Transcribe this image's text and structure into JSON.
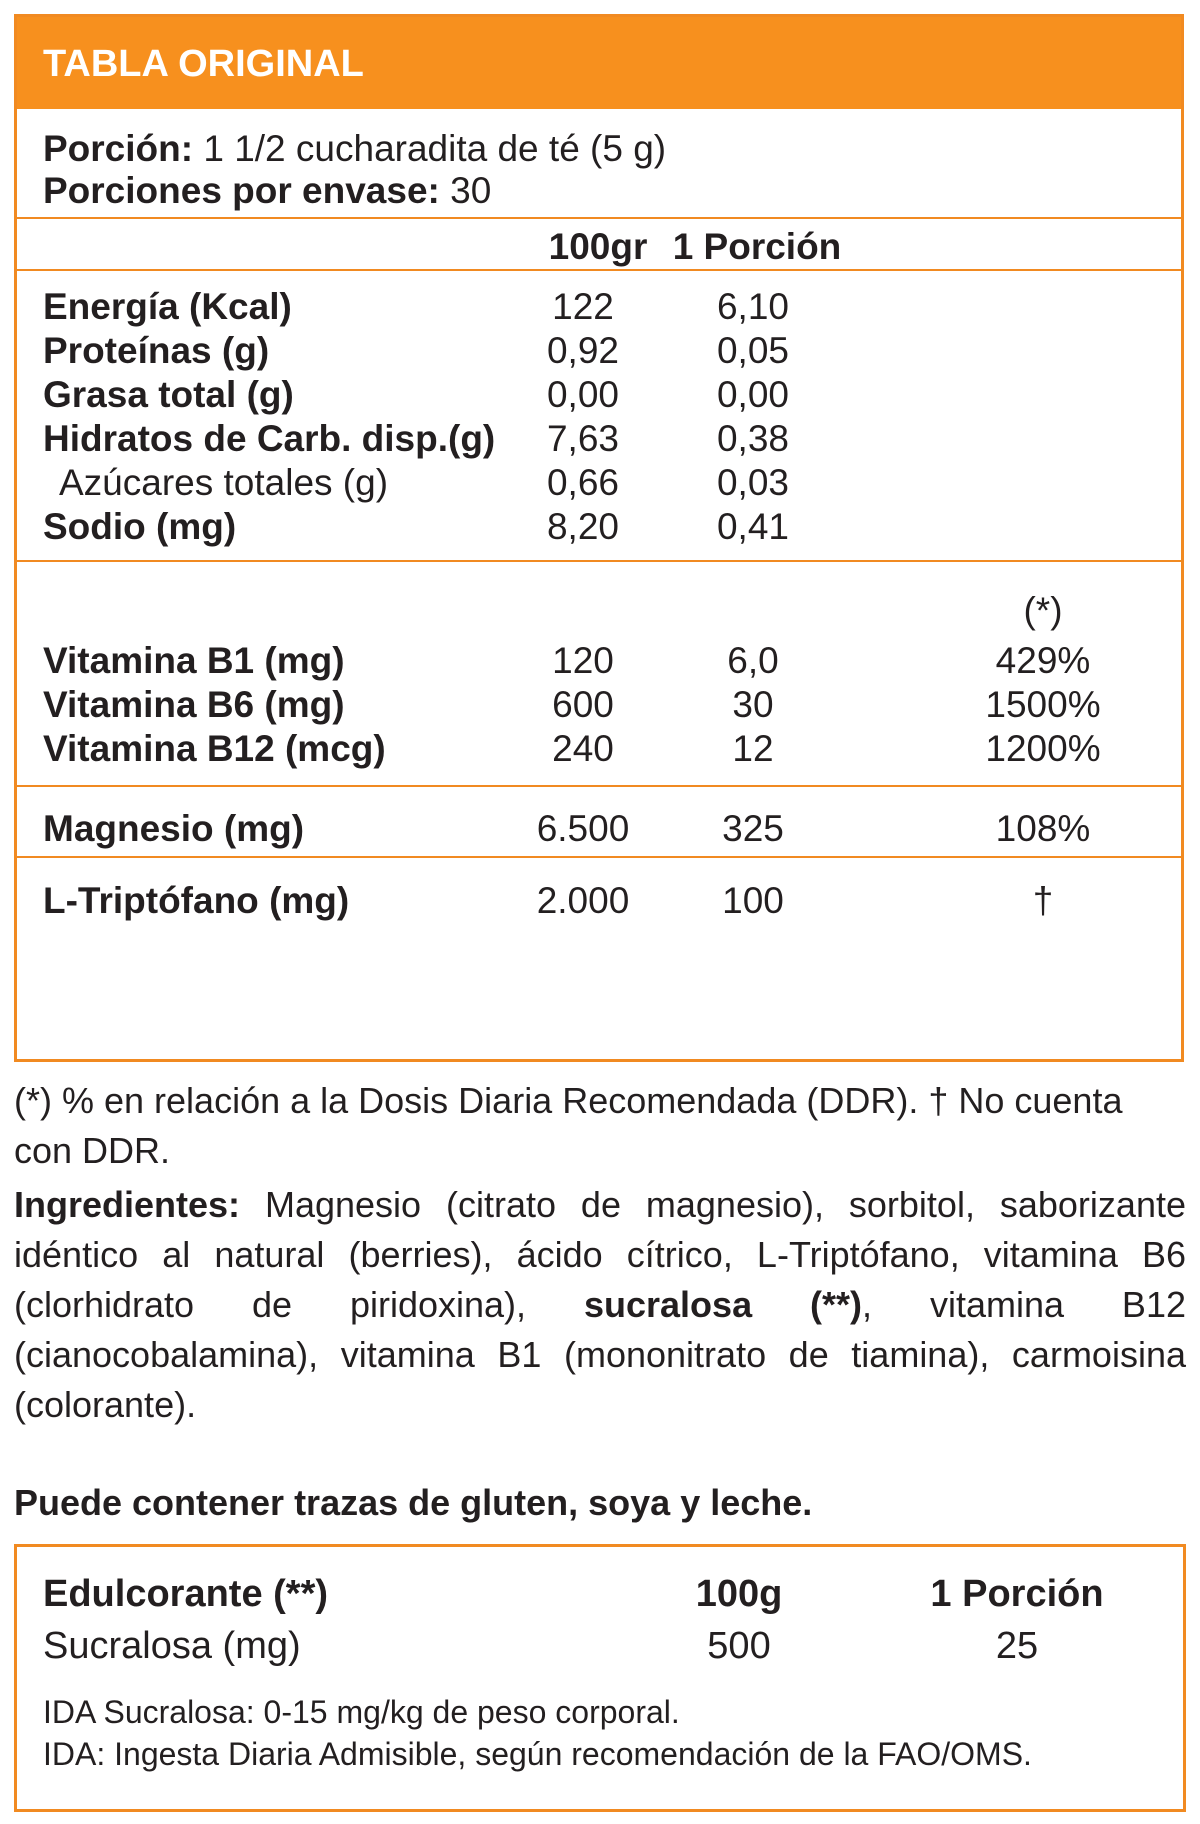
{
  "header": {
    "title": "TABLA ORIGINAL"
  },
  "serving": {
    "portion_label": "Porción:",
    "portion_value": " 1 1/2 cucharadita de té (5 g)",
    "per_pack_label": "Porciones por envase:",
    "per_pack_value": " 30"
  },
  "columns": {
    "col_100": "100gr",
    "col_portion": "1 Porción",
    "col_ddr_mark": "(*)"
  },
  "nutrients": [
    {
      "label": "Energía (Kcal)",
      "v100": "122",
      "vportion": "6,10"
    },
    {
      "label": "Proteínas (g)",
      "v100": "0,92",
      "vportion": "0,05"
    },
    {
      "label": "Grasa total (g)",
      "v100": "0,00",
      "vportion": "0,00"
    },
    {
      "label": "Hidratos de Carb. disp.(g)",
      "v100": "7,63",
      "vportion": "0,38"
    },
    {
      "label": "Azúcares totales (g)",
      "v100": "0,66",
      "vportion": "0,03"
    },
    {
      "label": "Sodio (mg)",
      "v100": "8,20",
      "vportion": "0,41"
    }
  ],
  "vitamins": [
    {
      "label": "Vitamina B1 (mg)",
      "v100": "120",
      "vportion": "6,0",
      "ddr": "429%"
    },
    {
      "label": "Vitamina B6 (mg)",
      "v100": "600",
      "vportion": "30",
      "ddr": "1500%"
    },
    {
      "label": "Vitamina B12 (mcg)",
      "v100": "240",
      "vportion": "12",
      "ddr": "1200%"
    }
  ],
  "magnesium": {
    "label": "Magnesio (mg)",
    "v100": "6.500",
    "vportion": "325",
    "ddr": "108%"
  },
  "tryptophan": {
    "label": "L-Triptófano (mg)",
    "v100": "2.000",
    "vportion": "100",
    "ddr": "†"
  },
  "footnote": "(*) % en relación a la Dosis Diaria Recomendada (DDR). † No cuenta con DDR.",
  "ingredients": {
    "label": "Ingredientes:",
    "text_a": "  Magnesio (citrato de magnesio), sorbitol, saborizante idéntico al natural (berries), ácido cítrico, L-Triptófano, vitamina B6 (clorhidrato de piridoxina), ",
    "bold_mid": "sucralosa (**)",
    "text_b": ", vitamina B12 (cianocobalamina), vitamina B1 (mononitrato de tiamina), carmoisina (colorante)."
  },
  "allergens": "Puede contener trazas de gluten, soya y leche.",
  "sweetener": {
    "title": "Edulcorante (**)",
    "col_100": "100g",
    "col_portion": "1 Porción",
    "row_label": "Sucralosa (mg)",
    "row_100": "500",
    "row_portion": "25",
    "note1": "IDA Sucralosa: 0-15 mg/kg de peso corporal.",
    "note2": "IDA: Ingesta Diaria Admisible, según recomendación de la FAO/OMS."
  },
  "colors": {
    "accent": "#f7901e",
    "border": "#f18a21",
    "text": "#231f20"
  }
}
